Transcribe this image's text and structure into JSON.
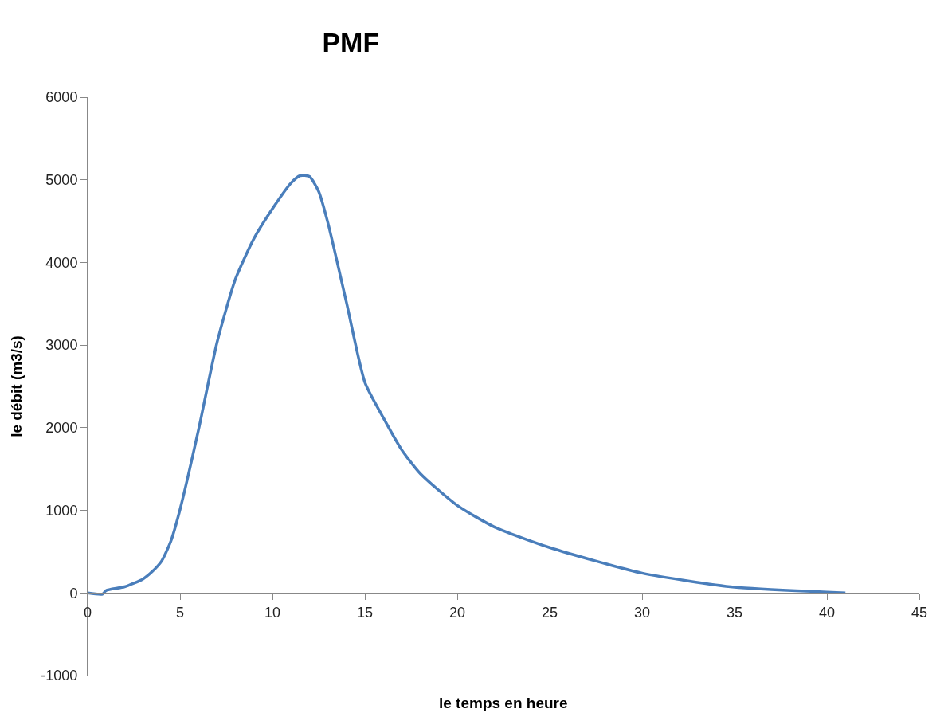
{
  "chart_data": {
    "type": "line",
    "title": "PMF",
    "xlabel": "le temps en heure",
    "ylabel": "le débit (m3/s)",
    "x": [
      0,
      0.8,
      1,
      2,
      3,
      3.5,
      4,
      4.5,
      5,
      6,
      7,
      8,
      9,
      10,
      11,
      11.5,
      12,
      12.5,
      13,
      14,
      15,
      16,
      17,
      18,
      20,
      22,
      25,
      30,
      35,
      40,
      41
    ],
    "series": [
      {
        "color": "#4a7ebb",
        "values": [
          0,
          -15,
          30,
          75,
          170,
          260,
          385,
          625,
          1010,
          1975,
          3030,
          3800,
          4290,
          4650,
          4960,
          5050,
          5040,
          4860,
          4480,
          3520,
          2550,
          2120,
          1730,
          1445,
          1060,
          800,
          550,
          240,
          70,
          10,
          0
        ]
      }
    ],
    "xlim": [
      0,
      45
    ],
    "xticks": [
      0,
      5,
      10,
      15,
      20,
      25,
      30,
      35,
      40,
      45
    ],
    "ylim": [
      -1000,
      6000
    ],
    "yticks": [
      -1000,
      0,
      1000,
      2000,
      3000,
      4000,
      5000,
      6000
    ],
    "grid": false,
    "legend": false,
    "marker": "none",
    "line_style": "solid"
  }
}
